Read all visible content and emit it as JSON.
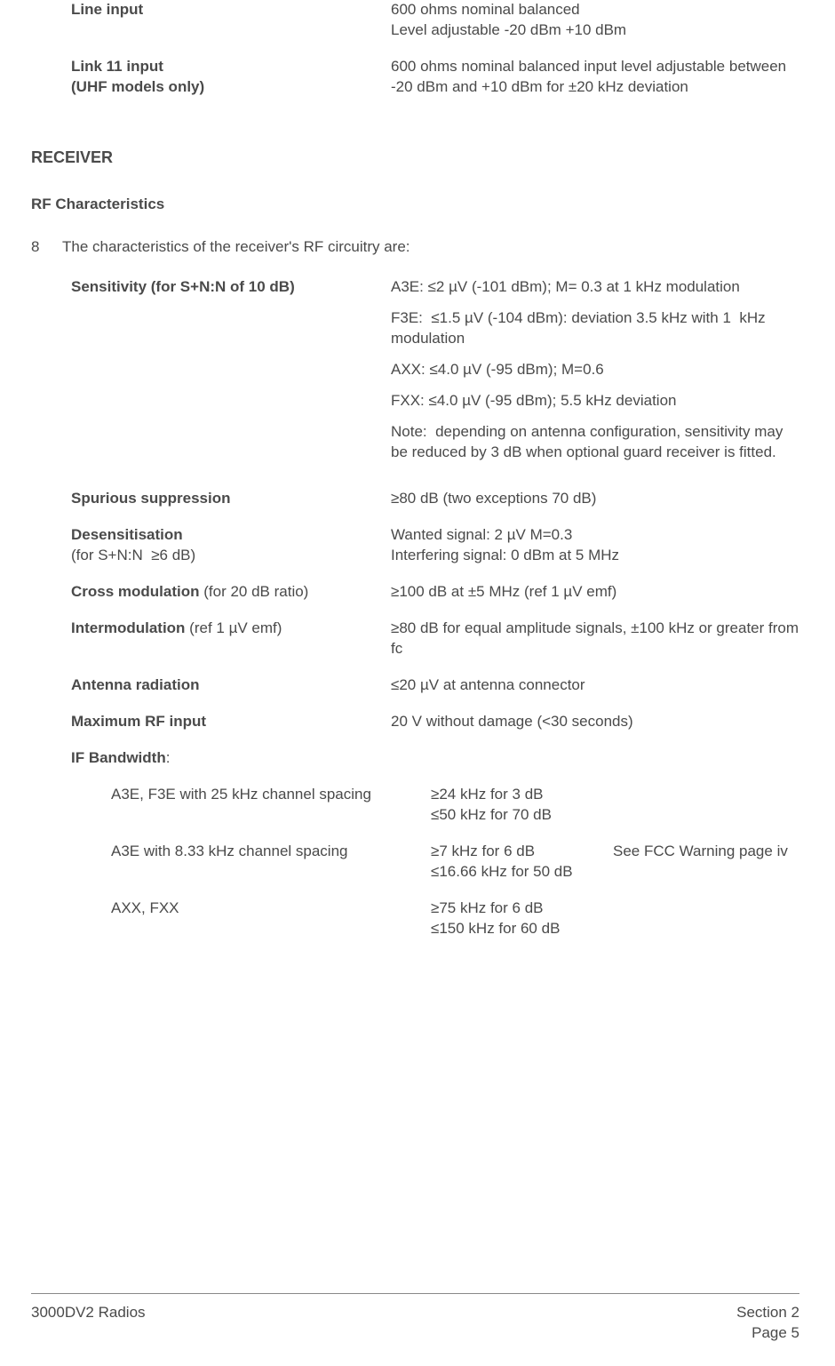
{
  "top_specs": [
    {
      "label_html": "<span class='bold'>Line input</span>",
      "value_html": "600 ohms nominal balanced<br>Level adjustable -20 dBm +10 dBm"
    },
    {
      "label_html": "<span class='bold'>Link 11 input<br>(UHF models only)</span>",
      "value_html": "600 ohms nominal balanced input level adjustable between&nbsp; -20 dBm and +10 dBm for ±20 kHz deviation"
    }
  ],
  "section_h1": "RECEIVER",
  "section_h2": "RF Characteristics",
  "para_num": "8",
  "para_text": "The characteristics of the receiver's RF circuitry are:",
  "receiver_specs": [
    {
      "label_html": "<span class='bold'>Sensitivity (for S+N:N of 10 dB)</span>",
      "value_blocks": [
        "A3E: ≤2 µV (-101 dBm); M= 0.3 at 1 kHz modulation",
        "F3E:&nbsp; ≤1.5 µV (-104 dBm): deviation 3.5 kHz with 1&nbsp; kHz modulation",
        "AXX: ≤4.0 µV (-95 dBm); M=0.6",
        "FXX: ≤4.0 µV (-95 dBm); 5.5 kHz deviation",
        "Note:&nbsp; depending on antenna configuration, sensitivity may be reduced by 3 dB when optional guard receiver is fitted."
      ]
    },
    {
      "label_html": "<span class='bold'>Spurious suppression</span>",
      "value_html": "≥80 dB (two exceptions 70 dB)"
    },
    {
      "label_html": "<span class='bold'>Desensitisation</span><br>(for S+N:N&nbsp; ≥6 dB)",
      "value_html": "Wanted signal: 2 µV M=0.3<br>Interfering signal: 0 dBm at 5 MHz"
    },
    {
      "label_html": "<span class='bold'>Cross modulation</span> (for 20 dB ratio)",
      "value_html": "≥100 dB at ±5 MHz (ref 1 µV emf)"
    },
    {
      "label_html": "<span class='bold'>Intermodulation</span> (ref 1 µV emf)",
      "value_html": "≥80 dB for equal amplitude signals, ±100 kHz or greater from fc"
    },
    {
      "label_html": "<span class='bold'>Antenna radiation</span>",
      "value_html": "≤20 µV at antenna connector"
    },
    {
      "label_html": "<span class='bold'>Maximum RF input</span>",
      "value_html": "20 V without damage (&lt;30 seconds)"
    },
    {
      "label_html": "<span class='bold'>IF Bandwidth</span>:",
      "value_html": ""
    }
  ],
  "if_bandwidth": [
    {
      "label_html": "A3E, F3E with 25 kHz channel spacing",
      "value_html": "≥24 kHz for 3 dB<br>≤50 kHz for 70 dB",
      "extra": ""
    },
    {
      "label_html": "A3E with 8.33 kHz channel spacing",
      "value_html": "≥7 kHz for 6 dB<br>≤16.66 kHz for 50 dB",
      "extra": "See FCC Warning page iv"
    },
    {
      "label_html": "AXX, FXX",
      "value_html": "≥75 kHz for 6 dB<br>≤150 kHz for 60 dB",
      "extra": ""
    }
  ],
  "footer": {
    "left": "3000DV2 Radios",
    "right1": "Section 2",
    "right2": "Page 5"
  }
}
